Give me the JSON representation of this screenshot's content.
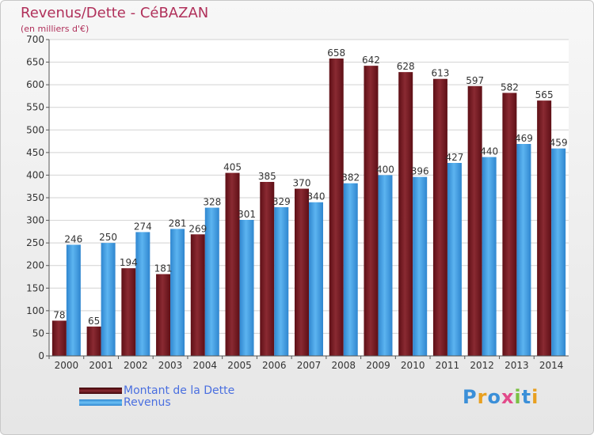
{
  "title": "Revenus/Dette - CéBAZAN",
  "subtitle": "(en milliers d'€)",
  "logo": {
    "letters": [
      "P",
      "r",
      "o",
      "x",
      "i",
      "t",
      "i"
    ],
    "colors": [
      "#3b8fd8",
      "#e8a020",
      "#3b8fd8",
      "#e24a8a",
      "#7ac043",
      "#3b8fd8",
      "#e8a020"
    ]
  },
  "chart_data": {
    "type": "bar",
    "categories": [
      "2000",
      "2001",
      "2002",
      "2003",
      "2004",
      "2005",
      "2006",
      "2007",
      "2008",
      "2009",
      "2010",
      "2011",
      "2012",
      "2013",
      "2014"
    ],
    "series": [
      {
        "name": "Montant de la Dette",
        "color": "#7a2028",
        "values": [
          78,
          65,
          194,
          181,
          269,
          405,
          385,
          370,
          658,
          642,
          628,
          613,
          597,
          582,
          565
        ]
      },
      {
        "name": "Revenus",
        "color": "#3fa0e4",
        "values": [
          246,
          250,
          274,
          281,
          328,
          301,
          329,
          340,
          382,
          400,
          396,
          427,
          440,
          469,
          459
        ]
      }
    ],
    "ylim": [
      0,
      700
    ],
    "yticks": [
      0,
      50,
      100,
      150,
      200,
      250,
      300,
      350,
      400,
      450,
      500,
      550,
      600,
      650,
      700
    ],
    "grid": true,
    "legend": "bottom-left"
  }
}
